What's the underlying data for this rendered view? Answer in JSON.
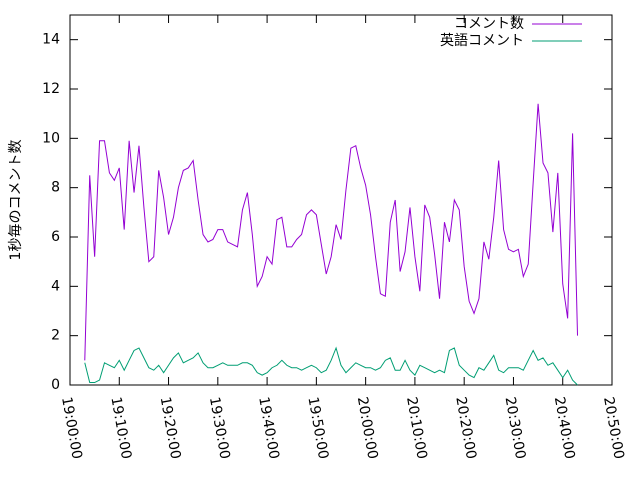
{
  "chart_data": {
    "type": "line",
    "y_label": "1秒毎のコメント数",
    "x": [
      "19:03:00",
      "19:04:00",
      "19:05:00",
      "19:06:00",
      "19:07:00",
      "19:08:00",
      "19:09:00",
      "19:10:00",
      "19:11:00",
      "19:12:00",
      "19:13:00",
      "19:14:00",
      "19:15:00",
      "19:16:00",
      "19:17:00",
      "19:18:00",
      "19:19:00",
      "19:20:00",
      "19:21:00",
      "19:22:00",
      "19:23:00",
      "19:24:00",
      "19:25:00",
      "19:26:00",
      "19:27:00",
      "19:28:00",
      "19:29:00",
      "19:30:00",
      "19:31:00",
      "19:32:00",
      "19:33:00",
      "19:34:00",
      "19:35:00",
      "19:36:00",
      "19:37:00",
      "19:38:00",
      "19:39:00",
      "19:40:00",
      "19:41:00",
      "19:42:00",
      "19:43:00",
      "19:44:00",
      "19:45:00",
      "19:46:00",
      "19:47:00",
      "19:48:00",
      "19:49:00",
      "19:50:00",
      "19:51:00",
      "19:52:00",
      "19:53:00",
      "19:54:00",
      "19:55:00",
      "19:56:00",
      "19:57:00",
      "19:58:00",
      "19:59:00",
      "20:00:00",
      "20:01:00",
      "20:02:00",
      "20:03:00",
      "20:04:00",
      "20:05:00",
      "20:06:00",
      "20:07:00",
      "20:08:00",
      "20:09:00",
      "20:10:00",
      "20:11:00",
      "20:12:00",
      "20:13:00",
      "20:14:00",
      "20:15:00",
      "20:16:00",
      "20:17:00",
      "20:18:00",
      "20:19:00",
      "20:20:00",
      "20:21:00",
      "20:22:00",
      "20:23:00",
      "20:24:00",
      "20:25:00",
      "20:26:00",
      "20:27:00",
      "20:28:00",
      "20:29:00",
      "20:30:00",
      "20:31:00",
      "20:32:00",
      "20:33:00",
      "20:34:00",
      "20:35:00",
      "20:36:00",
      "20:37:00",
      "20:38:00",
      "20:39:00",
      "20:40:00",
      "20:41:00",
      "20:42:00",
      "20:43:00"
    ],
    "series": [
      {
        "name": "コメント数",
        "color": "#9400d3",
        "values": [
          1.0,
          8.5,
          5.2,
          9.9,
          9.9,
          8.6,
          8.3,
          8.8,
          6.3,
          9.9,
          7.8,
          9.7,
          7.2,
          5.0,
          5.2,
          8.7,
          7.6,
          6.1,
          6.8,
          8.0,
          8.7,
          8.8,
          9.1,
          7.5,
          6.1,
          5.8,
          5.9,
          6.3,
          6.3,
          5.8,
          5.7,
          5.6,
          7.1,
          7.8,
          6.1,
          4.0,
          4.4,
          5.2,
          4.9,
          6.7,
          6.8,
          5.6,
          5.6,
          5.9,
          6.1,
          6.9,
          7.1,
          6.9,
          5.7,
          4.5,
          5.2,
          6.5,
          5.9,
          7.9,
          9.6,
          9.7,
          8.8,
          8.1,
          6.9,
          5.2,
          3.7,
          3.6,
          6.6,
          7.5,
          4.6,
          5.4,
          7.2,
          5.2,
          3.8,
          7.3,
          6.8,
          5.3,
          3.5,
          6.6,
          5.8,
          7.5,
          7.1,
          4.8,
          3.4,
          2.9,
          3.5,
          5.8,
          5.1,
          6.8,
          9.1,
          6.3,
          5.5,
          5.4,
          5.5,
          4.4,
          4.9,
          8.2,
          11.4,
          9.0,
          8.6,
          6.2,
          8.6,
          4.1,
          2.7,
          10.2,
          2.0
        ]
      },
      {
        "name": "英語コメント",
        "color": "#009e73",
        "values": [
          0.9,
          0.1,
          0.1,
          0.2,
          0.9,
          0.8,
          0.7,
          1.0,
          0.6,
          1.0,
          1.4,
          1.5,
          1.1,
          0.7,
          0.6,
          0.8,
          0.5,
          0.8,
          1.1,
          1.3,
          0.9,
          1.0,
          1.1,
          1.3,
          0.9,
          0.7,
          0.7,
          0.8,
          0.9,
          0.8,
          0.8,
          0.8,
          0.9,
          0.9,
          0.8,
          0.5,
          0.4,
          0.5,
          0.7,
          0.8,
          1.0,
          0.8,
          0.7,
          0.7,
          0.6,
          0.7,
          0.8,
          0.7,
          0.5,
          0.6,
          1.0,
          1.5,
          0.8,
          0.5,
          0.7,
          0.9,
          0.8,
          0.7,
          0.7,
          0.6,
          0.7,
          1.0,
          1.1,
          0.6,
          0.6,
          1.0,
          0.6,
          0.4,
          0.8,
          0.7,
          0.6,
          0.5,
          0.6,
          0.5,
          1.4,
          1.5,
          0.8,
          0.6,
          0.4,
          0.3,
          0.7,
          0.6,
          0.9,
          1.2,
          0.6,
          0.5,
          0.7,
          0.7,
          0.7,
          0.6,
          1.0,
          1.4,
          1.0,
          1.1,
          0.8,
          0.9,
          0.6,
          0.3,
          0.6,
          0.2,
          0.0
        ]
      }
    ],
    "xlim": [
      "19:00:00",
      "20:50:00"
    ],
    "xticks": [
      "19:00:00",
      "19:10:00",
      "19:20:00",
      "19:30:00",
      "19:40:00",
      "19:50:00",
      "20:00:00",
      "20:10:00",
      "20:20:00",
      "20:30:00",
      "20:40:00",
      "20:50:00"
    ],
    "ylim": [
      0,
      15
    ],
    "yticks": [
      0,
      2,
      4,
      6,
      8,
      10,
      12,
      14
    ],
    "grid": false,
    "legend": "top-right"
  }
}
